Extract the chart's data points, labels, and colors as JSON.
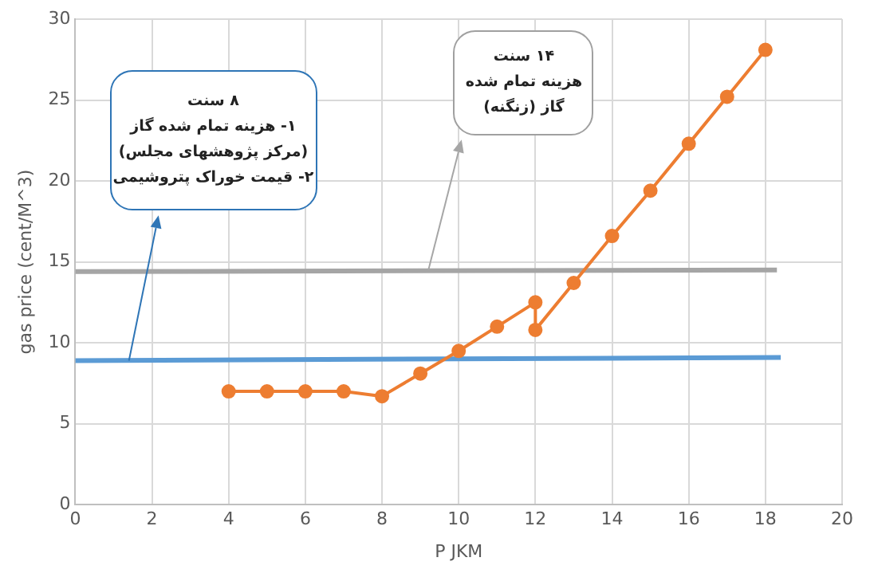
{
  "chart_data": {
    "type": "line",
    "xlabel": "P JKM",
    "ylabel": "gas price (cent/M^3)",
    "xlim": [
      0,
      20
    ],
    "xticks": [
      0,
      2,
      4,
      6,
      8,
      10,
      12,
      14,
      16,
      18,
      20
    ],
    "ylim": [
      0,
      30
    ],
    "yticks": [
      0,
      5,
      10,
      15,
      20,
      25,
      30
    ],
    "grid": true,
    "legend": false,
    "series": [
      {
        "color": "#ed7d31",
        "marker": "circle",
        "x": [
          4,
          5,
          6,
          7,
          8,
          9,
          10,
          11,
          12,
          12,
          13,
          14,
          15,
          16,
          17,
          18
        ],
        "values": [
          7,
          7,
          7,
          7,
          6.7,
          8.1,
          9.5,
          11,
          12.5,
          10.8,
          13.7,
          16.6,
          19.4,
          22.3,
          25.2,
          28.1
        ]
      },
      {
        "color": "#5b9bd5",
        "marker": "none",
        "x": [
          0,
          18.4
        ],
        "values": [
          8.9,
          9.1
        ]
      },
      {
        "color": "#a5a5a5",
        "marker": "none",
        "x": [
          0,
          18.3
        ],
        "values": [
          14.4,
          14.5
        ]
      }
    ],
    "annotations": [
      "۸ سنت\n۱- هزینه تمام شده گاز\n(مرکز پژوهشهای مجلس)\n۲- قیمت خوراک پتروشیمی",
      "۱۴ سنت\nهزینه تمام شده\nگاز (زنگنه)"
    ]
  }
}
